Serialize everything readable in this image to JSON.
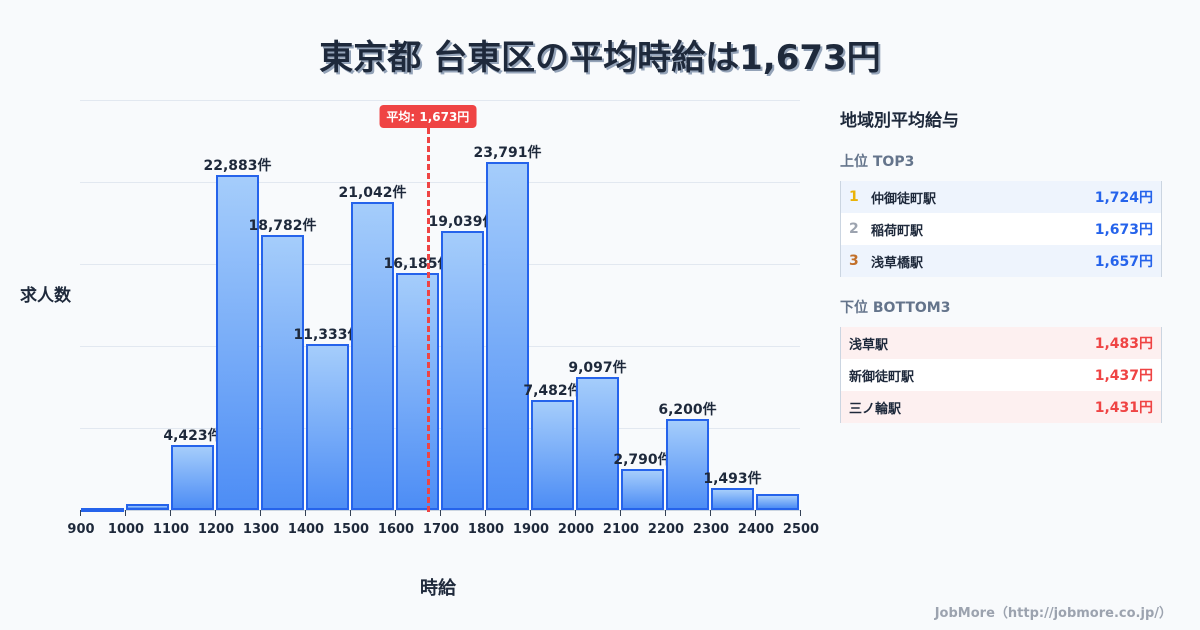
{
  "title": "東京都 台東区の平均時給は1,673円",
  "chart_data": {
    "type": "bar",
    "title": "東京都 台東区の平均時給は1,673円",
    "xlabel": "時給",
    "ylabel": "求人数",
    "bins_start": [
      900,
      1000,
      1100,
      1200,
      1300,
      1400,
      1500,
      1600,
      1700,
      1800,
      1900,
      2000,
      2100,
      2200,
      2300,
      2400
    ],
    "x_ticks": [
      "900",
      "1000",
      "1100",
      "1200",
      "1300",
      "1400",
      "1500",
      "1600",
      "1700",
      "1800",
      "1900",
      "2000",
      "2100",
      "2200",
      "2300",
      "2400",
      "2500"
    ],
    "values": [
      100,
      400,
      4423,
      22883,
      18782,
      11333,
      21042,
      16185,
      19039,
      23791,
      7482,
      9097,
      2790,
      6200,
      1493,
      1090
    ],
    "labels": [
      "",
      "",
      "4,423件",
      "22,883件",
      "18,782件",
      "11,333件",
      "21,042件",
      "16,185件",
      "19,039件",
      "23,791件",
      "7,482件",
      "9,097件",
      "2,790件",
      "6,200件",
      "1,493件",
      ""
    ],
    "xlim": [
      900,
      2500
    ],
    "ylim": [
      0,
      28000
    ],
    "grid": true,
    "average": {
      "value": 1673,
      "label": "平均: 1,673円",
      "color": "#ef4444"
    },
    "bar_color": "#2563eb"
  },
  "panel": {
    "title": "地域別平均給与",
    "top_title": "上位 TOP3",
    "top": [
      {
        "rank": "1",
        "name": "仲御徒町駅",
        "value": "1,724円",
        "rank_color": "#eab308"
      },
      {
        "rank": "2",
        "name": "稲荷町駅",
        "value": "1,673円",
        "rank_color": "#9ca3af"
      },
      {
        "rank": "3",
        "name": "浅草橋駅",
        "value": "1,657円",
        "rank_color": "#c2702a"
      }
    ],
    "bottom_title": "下位 BOTTOM3",
    "bottom": [
      {
        "name": "浅草駅",
        "value": "1,483円"
      },
      {
        "name": "新御徒町駅",
        "value": "1,437円"
      },
      {
        "name": "三ノ輪駅",
        "value": "1,431円"
      }
    ]
  },
  "footer": "JobMore（http://jobmore.co.jp/）"
}
